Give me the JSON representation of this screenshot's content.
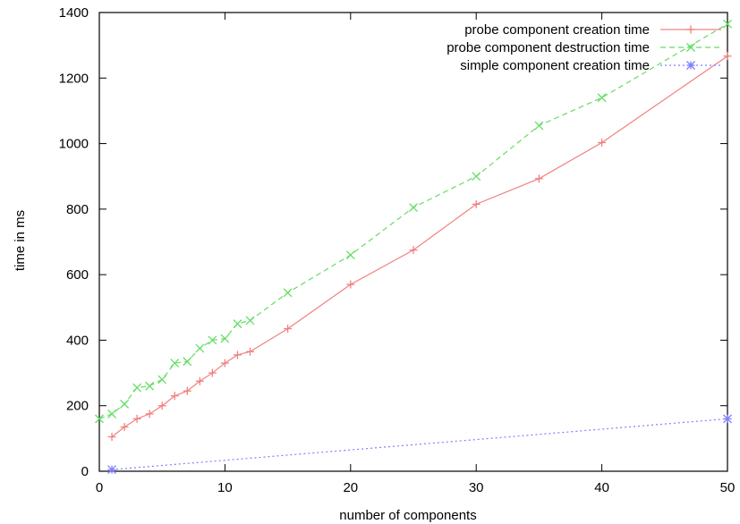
{
  "chart_data": {
    "type": "line",
    "title": "",
    "xlabel": "number of components",
    "ylabel": "time in ms",
    "xlim": [
      0,
      50
    ],
    "ylim": [
      0,
      1400
    ],
    "xticks": [
      0,
      10,
      20,
      30,
      40,
      50
    ],
    "yticks": [
      0,
      200,
      400,
      600,
      800,
      1000,
      1200,
      1400
    ],
    "grid": false,
    "legend_position": "top-right",
    "series": [
      {
        "name": "probe component creation time",
        "color": "#f08080",
        "marker": "plus",
        "dash": "solid",
        "x": [
          1,
          2,
          3,
          4,
          5,
          6,
          7,
          8,
          9,
          10,
          11,
          12,
          15,
          20,
          25,
          30,
          35,
          40,
          50
        ],
        "y": [
          105,
          135,
          160,
          175,
          200,
          230,
          245,
          275,
          300,
          330,
          355,
          365,
          435,
          570,
          675,
          815,
          893,
          1003,
          1267
        ]
      },
      {
        "name": "probe component destruction time",
        "color": "#66dd66",
        "marker": "x",
        "dash": "dashed",
        "x": [
          0,
          1,
          2,
          3,
          4,
          5,
          6,
          7,
          8,
          9,
          10,
          11,
          12,
          15,
          20,
          25,
          30,
          35,
          40,
          50
        ],
        "y": [
          160,
          175,
          205,
          255,
          260,
          280,
          330,
          335,
          375,
          400,
          405,
          450,
          460,
          545,
          660,
          805,
          900,
          1055,
          1140,
          1365
        ]
      },
      {
        "name": "simple component creation time",
        "color": "#8080ff",
        "marker": "star",
        "dash": "dotted",
        "x": [
          1,
          50
        ],
        "y": [
          5,
          160
        ]
      }
    ]
  }
}
